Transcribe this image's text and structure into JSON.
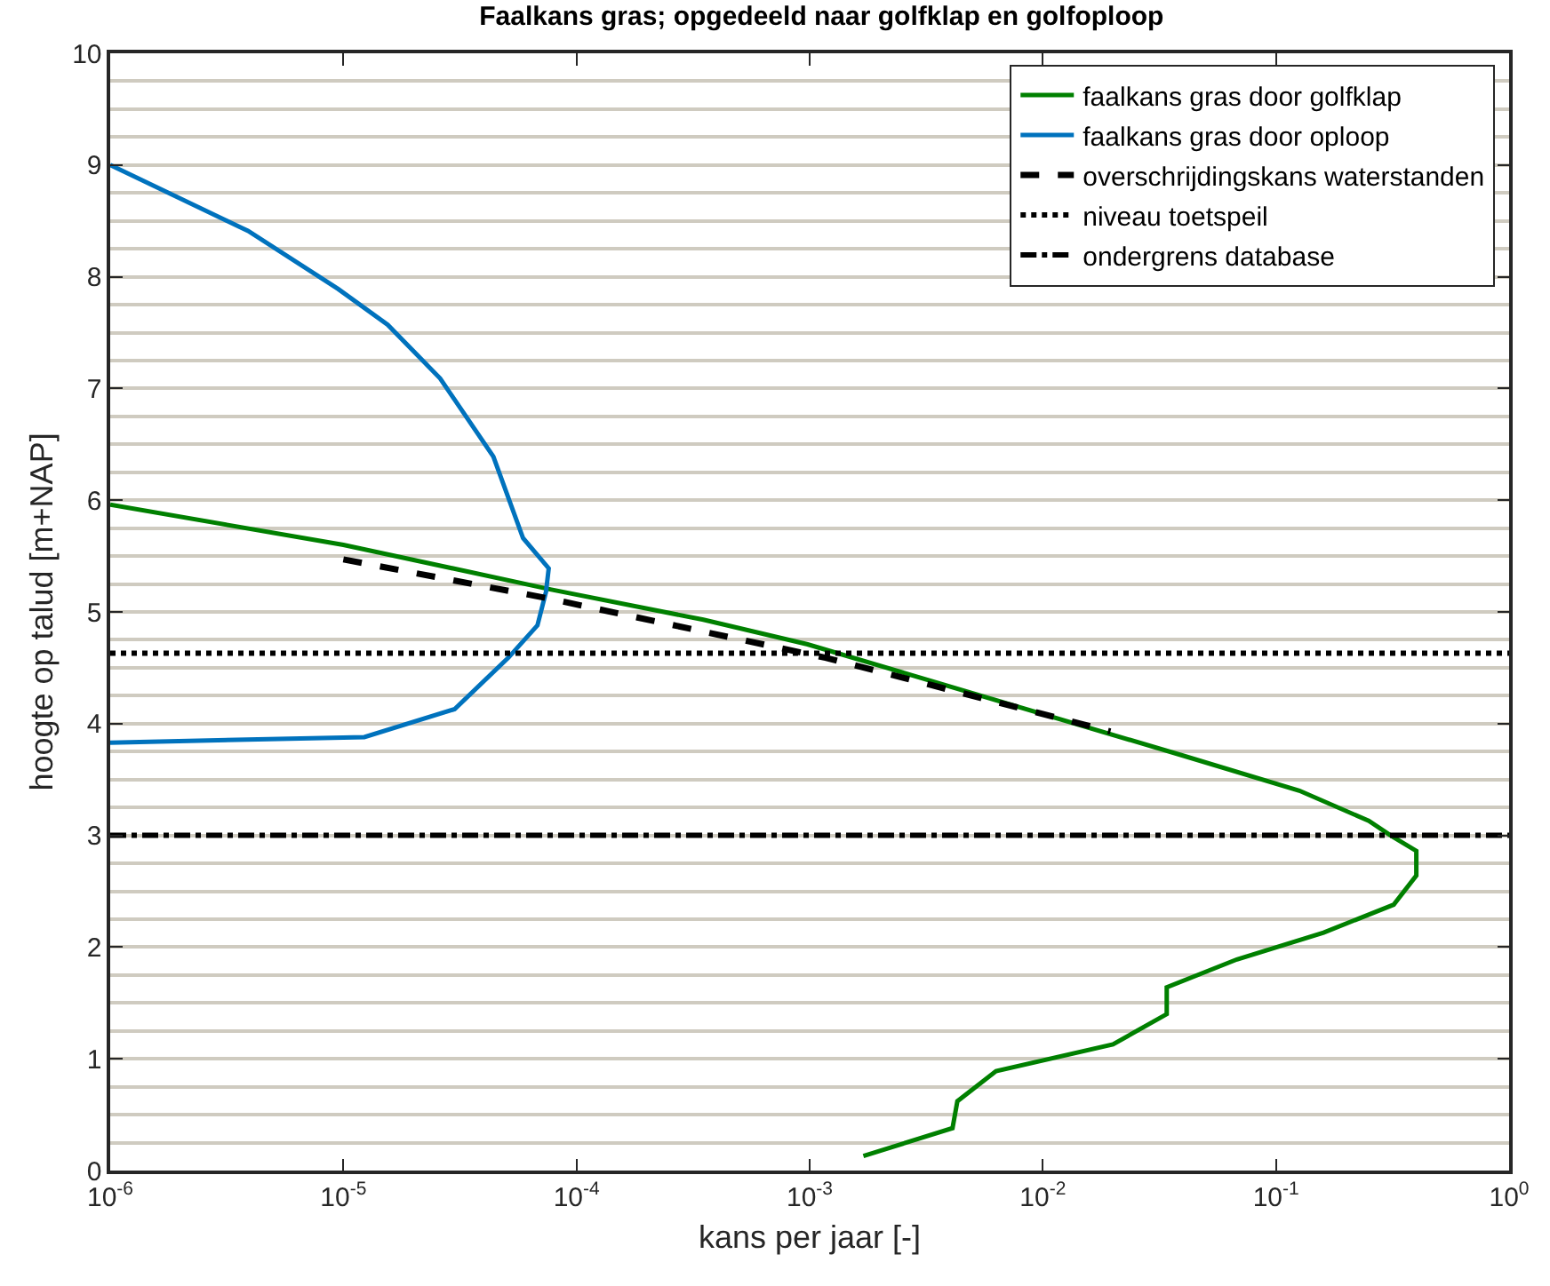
{
  "chart_data": {
    "type": "line",
    "title": "Faalkans gras; opgedeeld naar golfklap en golfoploop",
    "xlabel": "kans per jaar [-]",
    "ylabel": "hoogte op talud [m+NAP]",
    "log": "x",
    "grid": "y",
    "legend": "top right",
    "marker": "none",
    "xlim": [
      1e-06,
      1
    ],
    "xticks": [
      {
        "value": 1e-06,
        "label": "10$^{-6}$"
      },
      {
        "value": 1e-05,
        "label": "10$^{-5}$"
      },
      {
        "value": 0.0001,
        "label": "10$^{-4}$"
      },
      {
        "value": 0.001,
        "label": "10$^{-3}$"
      },
      {
        "value": 0.01,
        "label": "10$^{-2}$"
      },
      {
        "value": 0.1,
        "label": "10$^{-1}$"
      },
      {
        "value": 1,
        "label": "10$^{0}$"
      }
    ],
    "ylim": [
      0,
      10
    ],
    "yticks": [
      0,
      1,
      2,
      3,
      4,
      5,
      6,
      7,
      8,
      9,
      10
    ],
    "series": [
      {
        "name": "faalkans gras door golfklap",
        "color": "#008000",
        "line_style": "solid",
        "x": [
          1e-06,
          1e-05,
          7.8e-05,
          0.00035,
          0.00098,
          0.039,
          0.126,
          0.25,
          0.31,
          0.4,
          0.4,
          0.32,
          0.16,
          0.068,
          0.034,
          0.034,
          0.02,
          0.0063,
          0.0043,
          0.0041,
          0.0017
        ],
        "values": [
          5.96,
          5.6,
          5.2,
          4.93,
          4.71,
          3.72,
          3.4,
          3.13,
          3.0,
          2.86,
          2.64,
          2.38,
          2.13,
          1.89,
          1.64,
          1.4,
          1.13,
          0.89,
          0.62,
          0.38,
          0.13
        ]
      },
      {
        "name": "faalkans gras door oploop",
        "color": "#0072bd",
        "line_style": "solid",
        "x": [
          1e-06,
          3.9e-06,
          9.5e-06,
          1.55e-05,
          2.6e-05,
          4.4e-05,
          5.9e-05,
          7.6e-05,
          7.4e-05,
          6.8e-05,
          5.1e-05,
          3e-05,
          1.23e-05,
          1e-06
        ],
        "values": [
          9.0,
          8.41,
          7.89,
          7.57,
          7.09,
          6.39,
          5.66,
          5.39,
          5.18,
          4.88,
          4.59,
          4.13,
          3.88,
          3.83
        ]
      },
      {
        "name": "overschrijdingskans waterstanden",
        "color": "#000000",
        "line_style": "dashed",
        "x": [
          1e-05,
          7.6e-05,
          0.00117,
          0.0195
        ],
        "values": [
          5.47,
          5.12,
          4.59,
          3.93
        ]
      },
      {
        "name": "niveau toetspeil",
        "color": "#000000",
        "line_style": "dotted",
        "x": [
          1e-06,
          1
        ],
        "values": [
          4.63,
          4.63
        ]
      },
      {
        "name": "ondergrens database",
        "color": "#000000",
        "line_style": "dashdot",
        "x": [
          1e-06,
          1
        ],
        "values": [
          3.0,
          3.0
        ]
      }
    ]
  }
}
